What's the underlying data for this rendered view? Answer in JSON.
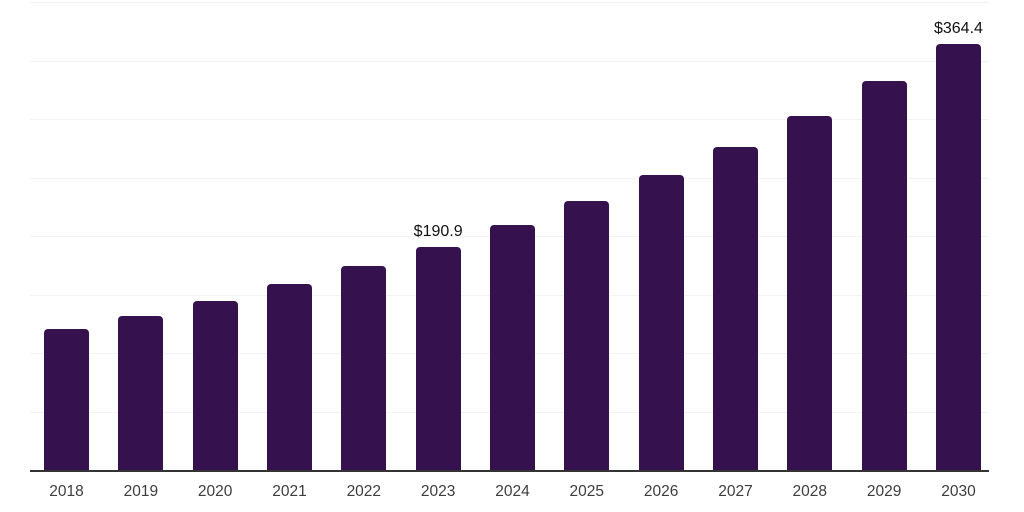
{
  "chart_data": {
    "type": "bar",
    "title": "",
    "xlabel": "",
    "ylabel": "",
    "categories": [
      "2018",
      "2019",
      "2020",
      "2021",
      "2022",
      "2023",
      "2024",
      "2025",
      "2026",
      "2027",
      "2028",
      "2029",
      "2030"
    ],
    "values": [
      120.3,
      131.9,
      144.7,
      158.7,
      174.1,
      190.9,
      209.4,
      229.6,
      251.9,
      276.2,
      302.9,
      332.2,
      364.4
    ],
    "data_labels": {
      "2023": "$190.9",
      "2030": "$364.4"
    },
    "ylim": [
      0,
      400
    ],
    "gridline_interval": 50,
    "grid": true,
    "y_tick_labels_visible": false,
    "legend": false,
    "colors": {
      "bar": "#35114D",
      "axis_line": "#333333",
      "gridline": "#f3f3f3",
      "tick_label": "#3d3d3d",
      "data_label": "#111111"
    }
  }
}
